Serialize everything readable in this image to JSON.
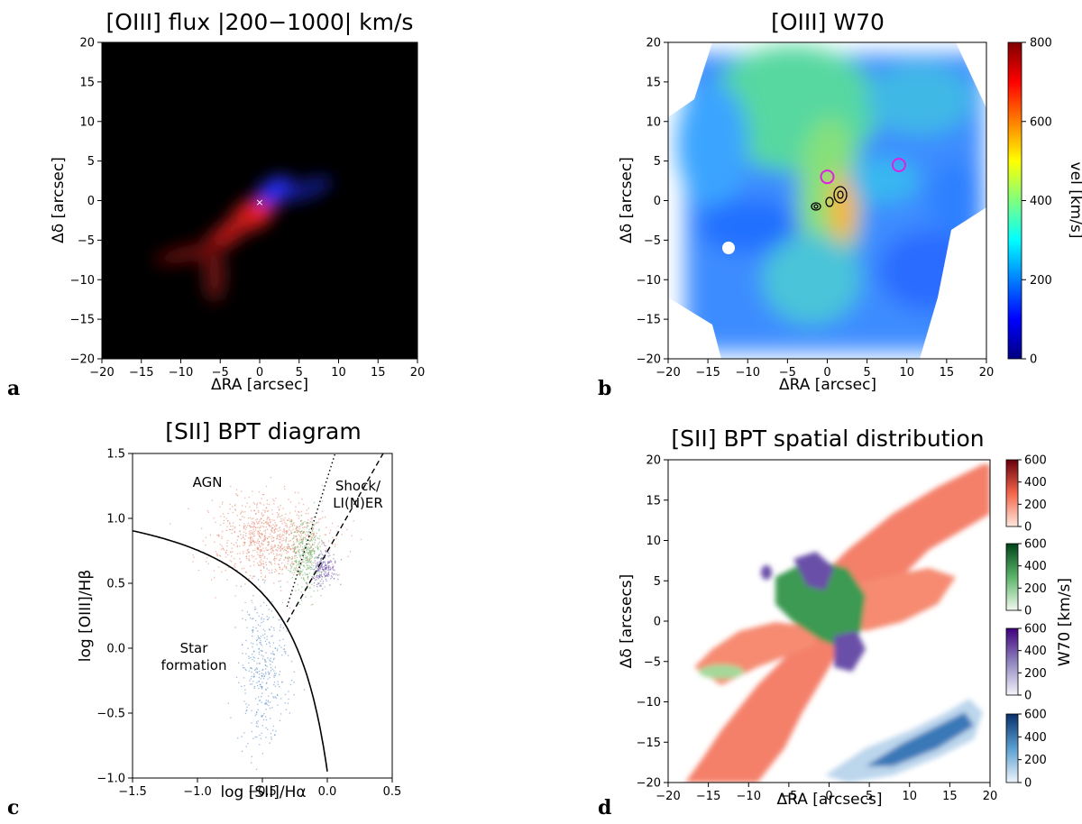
{
  "chart_data": [
    {
      "panel": "a",
      "type": "heatmap",
      "title": "[OIII] flux |200−1000| km/s",
      "xlabel": "ΔRA [arcsec]",
      "ylabel": "Δδ [arcsec]",
      "xlim": [
        -20,
        20
      ],
      "ylim": [
        -20,
        20
      ],
      "xticks": [
        "−20",
        "−15",
        "−10",
        "−5",
        "0",
        "5",
        "10",
        "15",
        "20"
      ],
      "yticks": [
        "−20",
        "−15",
        "−10",
        "−5",
        "0",
        "5",
        "10",
        "15",
        "20"
      ],
      "background_color": "#000000",
      "marker": {
        "symbol": "×",
        "x": 0,
        "y": 0,
        "color": "#ffffff"
      },
      "components": [
        {
          "color": "#ff2a2a",
          "description_shape": "redshifted",
          "peak": [
            -1,
            -1.5
          ],
          "extent": [
            [
              -15,
              -7
            ],
            [
              1,
              1
            ]
          ]
        },
        {
          "color": "#2a3cff",
          "description_shape": "blueshifted",
          "peak": [
            2,
            1.5
          ],
          "extent": [
            [
              0,
              -1
            ],
            [
              8,
              5
            ]
          ]
        }
      ]
    },
    {
      "panel": "b",
      "type": "heatmap",
      "title": "[OIII] W70",
      "xlabel": "ΔRA [arcsec]",
      "ylabel": "Δδ [arcsec]",
      "xlim": [
        -20,
        20
      ],
      "ylim": [
        -20,
        20
      ],
      "xticks": [
        "−20",
        "−15",
        "−10",
        "−5",
        "0",
        "5",
        "10",
        "15",
        "20"
      ],
      "yticks": [
        "−20",
        "−15",
        "−10",
        "−5",
        "0",
        "5",
        "10",
        "15",
        "20"
      ],
      "colorbar": {
        "label": "vel [km/s]",
        "ticks": [
          "0",
          "200",
          "400",
          "600",
          "800"
        ],
        "range": [
          0,
          800
        ],
        "colormap": "jet"
      },
      "circles": [
        {
          "x": 0,
          "y": 3,
          "color": "#e020e0"
        },
        {
          "x": 9,
          "y": 4.5,
          "color": "#e020e0"
        }
      ]
    },
    {
      "panel": "c",
      "type": "scatter",
      "title": "[SII] BPT diagram",
      "xlabel": "log [SII]/Hα",
      "ylabel": "log [OIII]/Hβ",
      "xlim": [
        -1.5,
        0.5
      ],
      "ylim": [
        -1.0,
        1.5
      ],
      "xticks": [
        "−1.5",
        "−1.0",
        "−0.5",
        "0.0",
        "0.5"
      ],
      "yticks": [
        "−1.0",
        "−0.5",
        "0.0",
        "0.5",
        "1.0",
        "1.5"
      ],
      "region_labels": {
        "agn": "AGN",
        "shock_line1": "Shock/",
        "shock_line2": "LI(N)ER",
        "sf_line1": "Star",
        "sf_line2": "formation"
      },
      "series": [
        {
          "color": "#e07a5f",
          "center": [
            -0.45,
            0.85
          ],
          "spread": [
            0.22,
            0.16
          ],
          "count": 900
        },
        {
          "color": "#5fae5f",
          "center": [
            -0.17,
            0.72
          ],
          "spread": [
            0.07,
            0.13
          ],
          "count": 350
        },
        {
          "color": "#6a4fa8",
          "center": [
            -0.03,
            0.62
          ],
          "spread": [
            0.05,
            0.06
          ],
          "count": 200
        },
        {
          "color": "#4a7fc0",
          "center": [
            -0.5,
            -0.15
          ],
          "spread": [
            0.09,
            0.28
          ],
          "count": 380
        }
      ]
    },
    {
      "panel": "d",
      "type": "heatmap",
      "title": "[SII] BPT spatial distribution",
      "xlabel": "ΔRA [arcsecs]",
      "ylabel": "Δδ [arcsecs]",
      "xlim": [
        -20,
        20
      ],
      "ylim": [
        -20,
        20
      ],
      "xticks": [
        "−20",
        "−15",
        "−10",
        "−5",
        "0",
        "5",
        "10",
        "15",
        "20"
      ],
      "yticks": [
        "−20",
        "−15",
        "−10",
        "−5",
        "0",
        "5",
        "10",
        "15",
        "20"
      ],
      "colorbar_label": "W70 [km/s]",
      "colorbars": [
        {
          "colors": [
            "#fde8de",
            "#67000d"
          ],
          "ticks": [
            "0",
            "200",
            "400",
            "600"
          ],
          "range": [
            0,
            600
          ]
        },
        {
          "colors": [
            "#f1f9ee",
            "#00441b"
          ],
          "ticks": [
            "0",
            "200",
            "400",
            "600"
          ],
          "range": [
            0,
            600
          ]
        },
        {
          "colors": [
            "#f6f4fa",
            "#3f007d"
          ],
          "ticks": [
            "0",
            "200",
            "400",
            "600"
          ],
          "range": [
            0,
            600
          ]
        },
        {
          "colors": [
            "#eef4fb",
            "#08306b"
          ],
          "ticks": [
            "0",
            "200",
            "400",
            "600"
          ],
          "range": [
            0,
            600
          ]
        }
      ]
    }
  ],
  "panel_letters": [
    "a",
    "b",
    "c",
    "d"
  ]
}
